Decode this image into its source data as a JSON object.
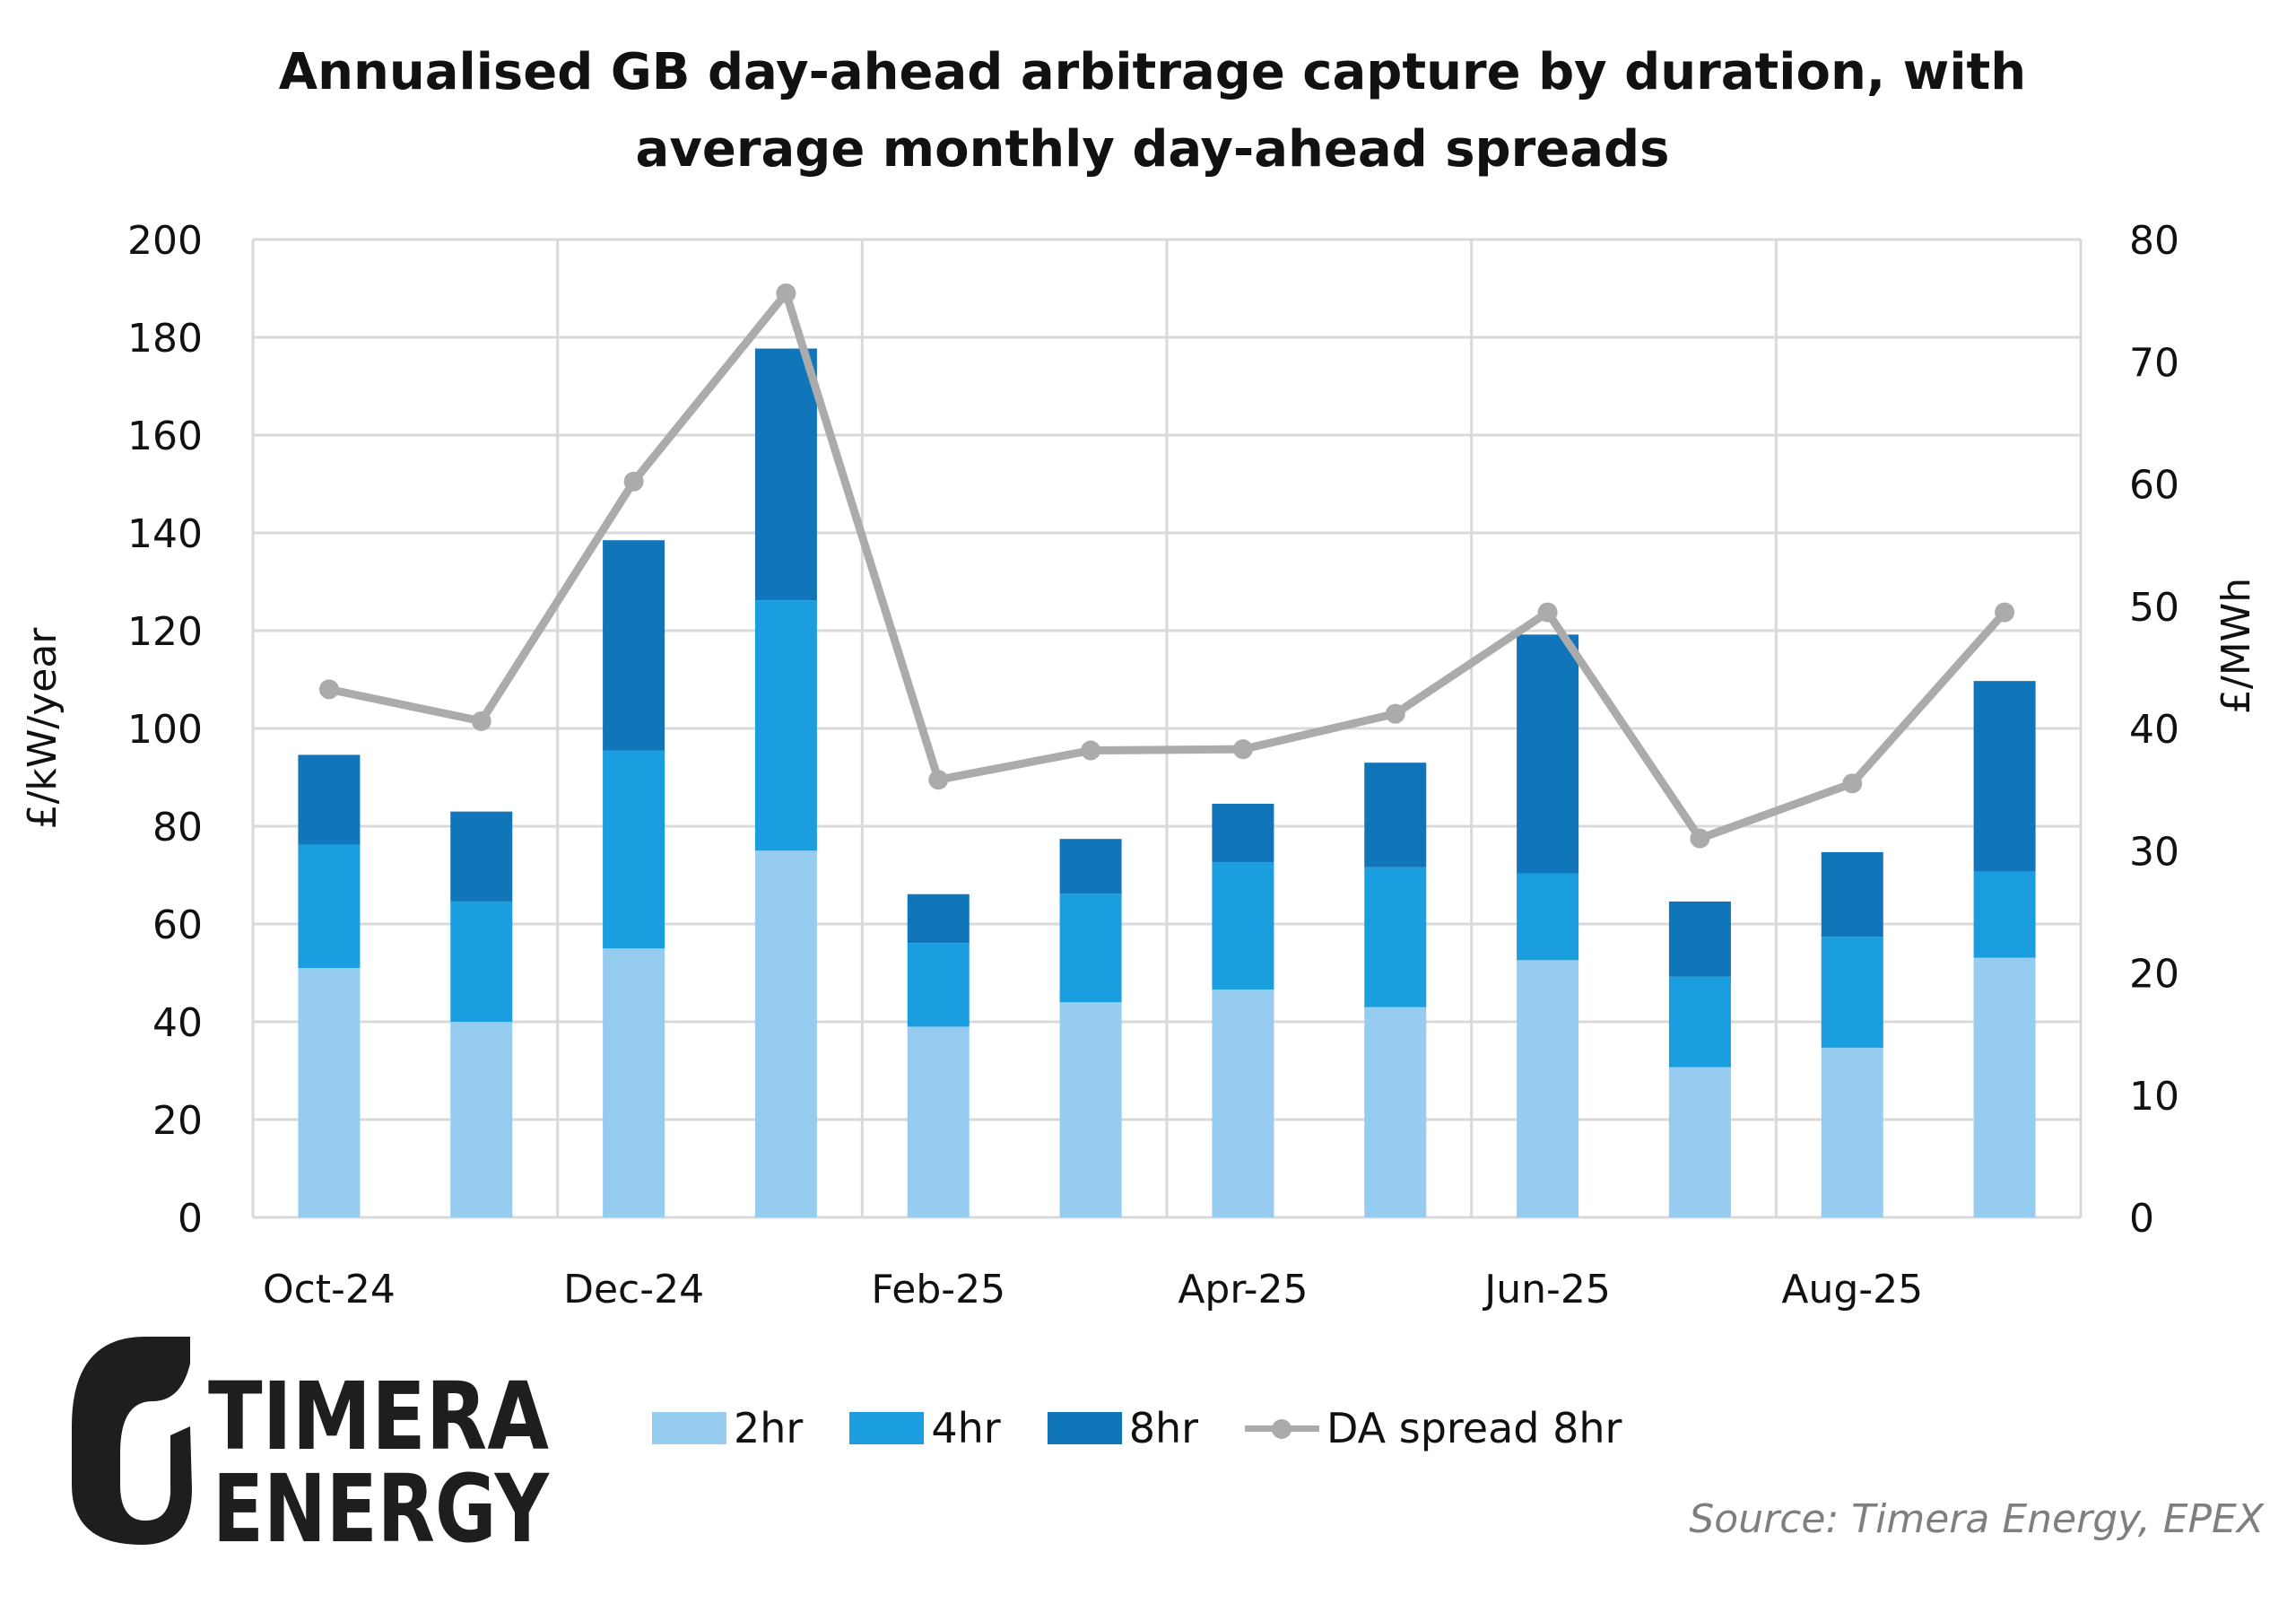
{
  "title": {
    "line1": "Annualised GB day-ahead arbitrage capture by duration, with",
    "line2": "average monthly day-ahead spreads"
  },
  "logo": {
    "line1": "TIMERA",
    "line2": "ENERGY"
  },
  "source": "Source: Timera Energy, EPEX",
  "colors": {
    "2hr": "#97ccf1",
    "4hr": "#1b9edf",
    "8hr": "#1175b9",
    "line": "#ababab",
    "grid": "#d9d9d9"
  },
  "legend": [
    {
      "label": "2hr",
      "key": "2hr",
      "kind": "bar"
    },
    {
      "label": "4hr",
      "key": "4hr",
      "kind": "bar"
    },
    {
      "label": "8hr",
      "key": "8hr",
      "kind": "bar"
    },
    {
      "label": "DA spread 8hr",
      "key": "line",
      "kind": "line"
    }
  ],
  "chart_data": {
    "type": "bar",
    "subtype": "stacked-bar-with-line-secondary-axis",
    "title": "Annualised GB day-ahead arbitrage capture by duration, with average monthly day-ahead spreads",
    "categories": [
      "Oct-24",
      "Nov-24",
      "Dec-24",
      "Jan-25",
      "Feb-25",
      "Mar-25",
      "Apr-25",
      "May-25",
      "Jun-25",
      "Jul-25",
      "Aug-25",
      "Sep-25"
    ],
    "x_tick_labels": [
      "Oct-24",
      "Dec-24",
      "Feb-25",
      "Apr-25",
      "Jun-25",
      "Aug-25"
    ],
    "ylabel": "£/kW/year",
    "ylim": [
      0,
      200
    ],
    "yticks": [
      0,
      20,
      40,
      60,
      80,
      100,
      120,
      140,
      160,
      180,
      200
    ],
    "y2label": "£/MWh",
    "y2lim": [
      0,
      80
    ],
    "y2ticks": [
      0,
      10,
      20,
      30,
      40,
      50,
      60,
      70,
      80
    ],
    "grid": true,
    "legend_position": "bottom",
    "series": [
      {
        "name": "2hr",
        "axis": "left",
        "type": "stacked-bar",
        "values": [
          51,
          40,
          55,
          75,
          39,
          44,
          46.6,
          43,
          52.6,
          30.7,
          34.7,
          53.1
        ]
      },
      {
        "name": "4hr",
        "axis": "left",
        "type": "stacked-bar",
        "values": [
          25.2,
          24.6,
          40.5,
          51.2,
          17.1,
          22.2,
          26,
          28.6,
          17.7,
          18.5,
          22.7,
          17.6
        ]
      },
      {
        "name": "8hr",
        "axis": "left",
        "type": "stacked-bar",
        "values": [
          18.4,
          18.4,
          43,
          51.5,
          10,
          11.2,
          12,
          21.4,
          48.9,
          15.4,
          17.3,
          39
        ]
      },
      {
        "name": "DA spread 8hr",
        "axis": "right",
        "type": "line",
        "values": [
          43.2,
          40.6,
          60.2,
          75.6,
          35.8,
          38.2,
          38.3,
          41.2,
          49.5,
          31,
          35.5,
          49.5
        ]
      }
    ]
  }
}
